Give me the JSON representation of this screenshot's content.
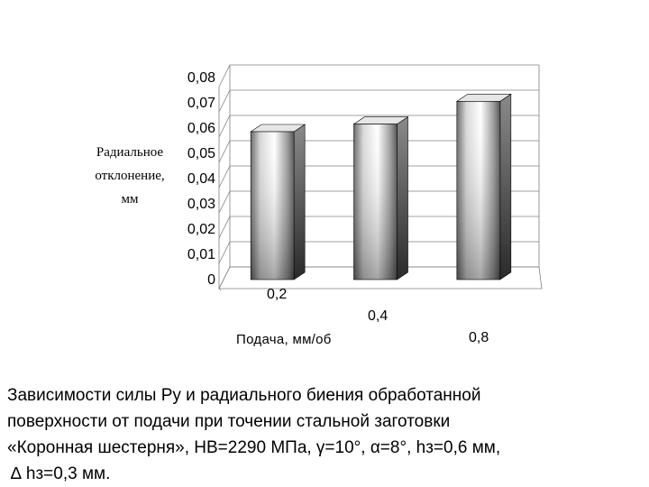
{
  "chart_data": {
    "type": "bar",
    "style": "3d-cylindrical",
    "categories": [
      "0,2",
      "0,4",
      "0,8"
    ],
    "values": [
      0.06,
      0.063,
      0.072
    ],
    "ylim": [
      0,
      0.08
    ],
    "yticks": [
      "0",
      "0,01",
      "0,02",
      "0,03",
      "0,04",
      "0,05",
      "0,06",
      "0,07",
      "0,08"
    ],
    "ylabel_lines": [
      "Радиальное",
      "отклонение,",
      "мм"
    ],
    "xlabel": "Подача, мм/об",
    "grid": true,
    "colors": {
      "bar_light": "#ffffff",
      "bar_dark": "#3a3a3a",
      "axis": "#808080"
    }
  },
  "caption": {
    "lines": [
      "Зависимости силы Ру и радиального биения обработанной",
      "поверхности от подачи при точении стальной заготовки",
      "«Коронная шестерня», НВ=2290 МПа, γ=10°, α=8°, hз=0,6 мм,",
      "∆ hз=0,3 мм."
    ]
  }
}
